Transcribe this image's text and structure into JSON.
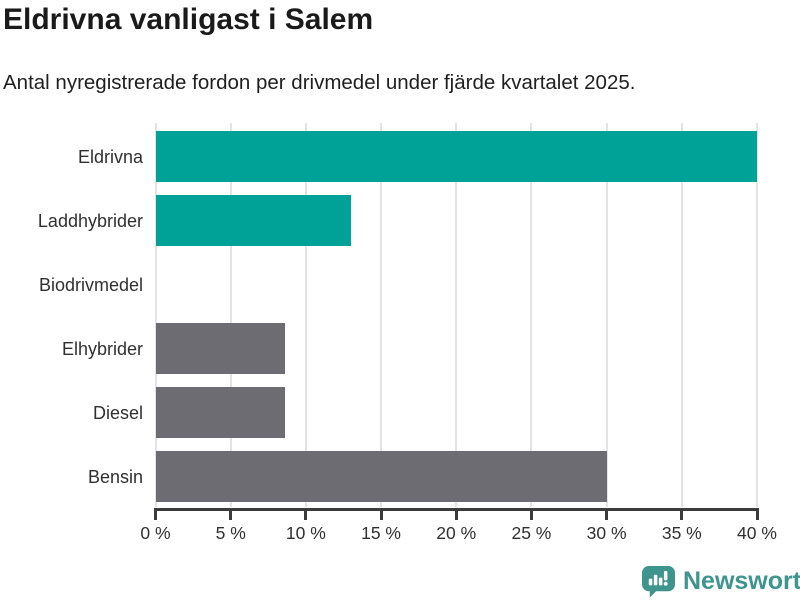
{
  "header": {
    "title": "Eldrivna vanligast i Salem",
    "subtitle": "Antal nyregistrerade fordon per drivmedel under fjärde kvartalet 2025."
  },
  "chart_data": {
    "type": "bar",
    "orientation": "horizontal",
    "title": "Eldrivna vanligast i Salem",
    "subtitle": "Antal nyregistrerade fordon per drivmedel under fjärde kvartalet 2025.",
    "categories": [
      "Eldrivna",
      "Laddhybrider",
      "Biodrivmedel",
      "Elhybrider",
      "Diesel",
      "Bensin"
    ],
    "values": [
      40,
      13,
      0,
      8.6,
      8.6,
      30
    ],
    "bar_colors": [
      "#00a298",
      "#00a298",
      "#6c6c72",
      "#6c6c72",
      "#6c6c72",
      "#6c6c72"
    ],
    "xlabel": "",
    "ylabel": "",
    "xlim": [
      0,
      40
    ],
    "x_ticks": [
      0,
      5,
      10,
      15,
      20,
      25,
      30,
      35,
      40
    ],
    "x_tick_labels": [
      "0 %",
      "5 %",
      "10 %",
      "15 %",
      "20 %",
      "25 %",
      "30 %",
      "35 %",
      "40 %"
    ],
    "grid": true,
    "legend": false
  },
  "footer": {
    "brand": "Newsworthy",
    "logo_icon": "newsworthy-speech-bubble-chart-icon"
  },
  "colors": {
    "teal": "#00a298",
    "gray": "#6c6c72",
    "grid": "#e3e3e3",
    "axis": "#3b3b3b",
    "text": "#1a1a1a",
    "brand_teal": "#3f948d"
  }
}
